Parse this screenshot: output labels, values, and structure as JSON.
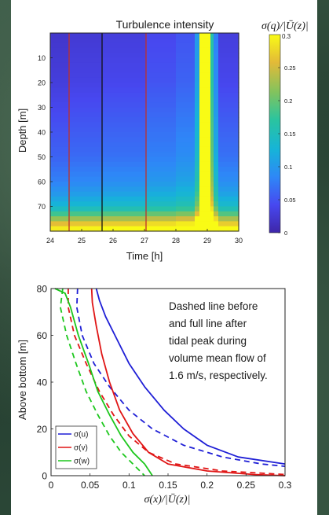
{
  "chart_data": [
    {
      "type": "heatmap",
      "title": "Turbulence intensity",
      "colorbar_label": "σ(q)/|Ū(z)|",
      "colorbar_ticks": [
        0,
        0.05,
        0.1,
        0.15,
        0.2,
        0.25,
        0.3
      ],
      "colorbar_top_label": "0.3",
      "clim": [
        0,
        0.3
      ],
      "colormap": "parula",
      "xlabel": "Time [h]",
      "ylabel": "Depth [m]",
      "xlim": [
        24,
        30
      ],
      "ylim": [
        0,
        80
      ],
      "y_reversed": true,
      "xticks": [
        24,
        25,
        26,
        27,
        28,
        29,
        30
      ],
      "yticks": [
        10,
        20,
        30,
        40,
        50,
        60,
        70
      ],
      "vertical_lines": [
        {
          "x": 24.6,
          "color": "#c0302a"
        },
        {
          "x": 25.65,
          "color": "#111111"
        },
        {
          "x": 27.05,
          "color": "#c0302a"
        }
      ],
      "depth_profile": {
        "depths": [
          0,
          10,
          20,
          30,
          40,
          50,
          60,
          65,
          70,
          72,
          75,
          78,
          80
        ],
        "values": [
          0.02,
          0.025,
          0.03,
          0.04,
          0.05,
          0.06,
          0.08,
          0.1,
          0.13,
          0.16,
          0.22,
          0.28,
          0.3
        ]
      },
      "bands": [
        {
          "t0": 24.0,
          "t1": 24.6,
          "shift": 0.0
        },
        {
          "t0": 24.6,
          "t1": 25.65,
          "shift": 0.005
        },
        {
          "t0": 25.65,
          "t1": 27.05,
          "shift": 0.01
        },
        {
          "t0": 27.05,
          "t1": 28.0,
          "shift": 0.02
        },
        {
          "t0": 28.0,
          "t1": 28.6,
          "shift": 0.03
        },
        {
          "t0": 28.6,
          "t1": 28.75,
          "shift": 0.08
        },
        {
          "t0": 28.75,
          "t1": 29.1,
          "shift": 0.3
        },
        {
          "t0": 29.1,
          "t1": 29.2,
          "shift": 0.14
        },
        {
          "t0": 29.2,
          "t1": 29.35,
          "shift": 0.06
        },
        {
          "t0": 29.35,
          "t1": 29.5,
          "shift": 0.01
        },
        {
          "t0": 29.5,
          "t1": 30.0,
          "shift": 0.01
        }
      ]
    },
    {
      "type": "line",
      "xlabel": "σ(x)/|Ū(z)|",
      "ylabel": "Above bottom [m]",
      "xlim": [
        0,
        0.3
      ],
      "ylim": [
        0,
        80
      ],
      "xticks": [
        0,
        0.05,
        0.1,
        0.15,
        0.2,
        0.25,
        0.3
      ],
      "yticks": [
        0,
        20,
        40,
        60,
        80
      ],
      "annotation": "Dashed line before and full line after tidal peak during volume mean flow of 1.6 m/s, respectively.",
      "legend_position": "bottom-left",
      "series": [
        {
          "name": "σ(u)",
          "color": "#1f1fd6",
          "style": "solid",
          "points": [
            [
              0.058,
              80
            ],
            [
              0.062,
              75
            ],
            [
              0.07,
              68
            ],
            [
              0.085,
              58
            ],
            [
              0.1,
              48
            ],
            [
              0.12,
              38
            ],
            [
              0.145,
              28
            ],
            [
              0.17,
              20
            ],
            [
              0.2,
              13
            ],
            [
              0.24,
              8
            ],
            [
              0.3,
              5
            ]
          ]
        },
        {
          "name": "σ(u)",
          "color": "#1f1fd6",
          "style": "dashed",
          "points": [
            [
              0.034,
              80
            ],
            [
              0.033,
              72
            ],
            [
              0.04,
              60
            ],
            [
              0.055,
              48
            ],
            [
              0.075,
              38
            ],
            [
              0.1,
              28
            ],
            [
              0.13,
              20
            ],
            [
              0.17,
              13
            ],
            [
              0.22,
              8
            ],
            [
              0.27,
              5
            ],
            [
              0.3,
              4
            ]
          ]
        },
        {
          "name": "σ(v)",
          "color": "#e01515",
          "style": "solid",
          "points": [
            [
              0.052,
              80
            ],
            [
              0.053,
              74
            ],
            [
              0.058,
              64
            ],
            [
              0.065,
              52
            ],
            [
              0.075,
              40
            ],
            [
              0.088,
              28
            ],
            [
              0.105,
              18
            ],
            [
              0.125,
              10
            ],
            [
              0.15,
              5
            ],
            [
              0.2,
              2
            ],
            [
              0.26,
              0.5
            ],
            [
              0.3,
              0
            ]
          ]
        },
        {
          "name": "σ(v)",
          "color": "#e01515",
          "style": "dashed",
          "points": [
            [
              0.022,
              80
            ],
            [
              0.022,
              72
            ],
            [
              0.03,
              60
            ],
            [
              0.045,
              48
            ],
            [
              0.062,
              36
            ],
            [
              0.08,
              26
            ],
            [
              0.1,
              17
            ],
            [
              0.125,
              10
            ],
            [
              0.16,
              5
            ],
            [
              0.22,
              2
            ],
            [
              0.3,
              0.5
            ]
          ]
        },
        {
          "name": "σ(w)",
          "color": "#1dc71d",
          "style": "solid",
          "points": [
            [
              0.005,
              80
            ],
            [
              0.018,
              78
            ],
            [
              0.025,
              72
            ],
            [
              0.035,
              60
            ],
            [
              0.048,
              48
            ],
            [
              0.06,
              36
            ],
            [
              0.075,
              26
            ],
            [
              0.09,
              17
            ],
            [
              0.105,
              10
            ],
            [
              0.12,
              5
            ],
            [
              0.13,
              0
            ]
          ]
        },
        {
          "name": "σ(w)",
          "color": "#1dc71d",
          "style": "dashed",
          "points": [
            [
              0.015,
              80
            ],
            [
              0.012,
              72
            ],
            [
              0.02,
              60
            ],
            [
              0.032,
              48
            ],
            [
              0.045,
              36
            ],
            [
              0.06,
              26
            ],
            [
              0.075,
              17
            ],
            [
              0.09,
              10
            ],
            [
              0.105,
              5
            ],
            [
              0.12,
              0
            ]
          ]
        }
      ],
      "legend": [
        {
          "label": "σ(u)",
          "color": "#1f1fd6"
        },
        {
          "label": "σ(v)",
          "color": "#e01515"
        },
        {
          "label": "σ(w)",
          "color": "#1dc71d"
        }
      ]
    }
  ]
}
